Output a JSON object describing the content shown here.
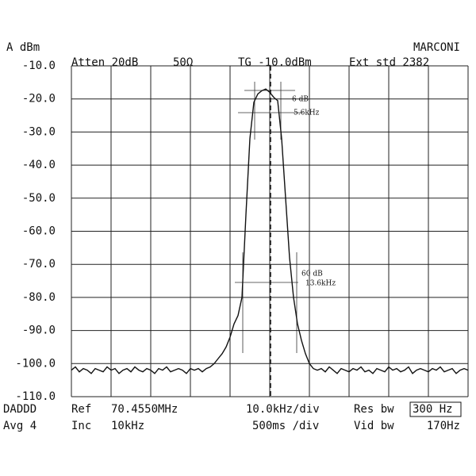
{
  "chart_data": {
    "type": "line",
    "y_label": "A dBm",
    "brand": "MARCONI",
    "atten": "Atten 20dB",
    "impedance": "50Ω",
    "tg": "TG -10.0dBm",
    "ext": "Ext std 2382",
    "annotations": {
      "top_db": "6 dB",
      "top_bw": "5.6kHz",
      "bottom_db": "60 dB",
      "bottom_bw": "13.6kHz"
    },
    "footer": {
      "mode": "DADDD",
      "avg": "Avg 4",
      "ref_label": "Ref",
      "ref": "70.4550MHz",
      "inc_label": "Inc",
      "inc": "10kHz",
      "span": "10.0kHz/div",
      "sweep": "500ms /div",
      "res_label": "Res bw",
      "res": "300 Hz",
      "vid_label": "Vid bw",
      "vid": "170Hz"
    },
    "ylim": [
      -110,
      -10
    ],
    "yticks": [
      {
        "value": -10,
        "label": "-10.0"
      },
      {
        "value": -20,
        "label": "-20.0"
      },
      {
        "value": -30,
        "label": "-30.0"
      },
      {
        "value": -40,
        "label": "-40.0"
      },
      {
        "value": -50,
        "label": "-50.0"
      },
      {
        "value": -60,
        "label": "-60.0"
      },
      {
        "value": -70,
        "label": "-70.0"
      },
      {
        "value": -80,
        "label": "-80.0"
      },
      {
        "value": -90,
        "label": "-90.0"
      },
      {
        "value": -100,
        "label": "-100.0"
      },
      {
        "value": -110,
        "label": "-110.0"
      }
    ],
    "grid": true,
    "color": "#111",
    "values": [
      -102,
      -101,
      -102.5,
      -101.5,
      -102,
      -103,
      -101.5,
      -102,
      -102.5,
      -101,
      -102,
      -101.5,
      -103,
      -102,
      -101.5,
      -102.5,
      -101,
      -102,
      -102.5,
      -101.5,
      -102,
      -103,
      -101.5,
      -102,
      -101,
      -102.5,
      -102,
      -101.5,
      -102,
      -103,
      -101.5,
      -102,
      -101.5,
      -102.5,
      -101.5,
      -101,
      -100,
      -98.5,
      -97,
      -95,
      -92,
      -88,
      -85.5,
      -80,
      -55,
      -32,
      -21,
      -18.5,
      -17.5,
      -17,
      -18,
      -19.5,
      -20.5,
      -32,
      -50,
      -68,
      -80,
      -88,
      -93,
      -97,
      -100,
      -101.5,
      -102,
      -101.5,
      -102.5,
      -101,
      -102,
      -103,
      -101.5,
      -102,
      -102.5,
      -101.5,
      -102,
      -101,
      -102.5,
      -102,
      -103,
      -101.5,
      -102,
      -102.5,
      -101,
      -102,
      -101.5,
      -102.5,
      -102,
      -101,
      -103,
      -102,
      -101.5,
      -102,
      -102.5,
      -101.5,
      -102,
      -101,
      -102.5,
      -102,
      -101.5,
      -103,
      -102,
      -101.5,
      -102
    ]
  }
}
